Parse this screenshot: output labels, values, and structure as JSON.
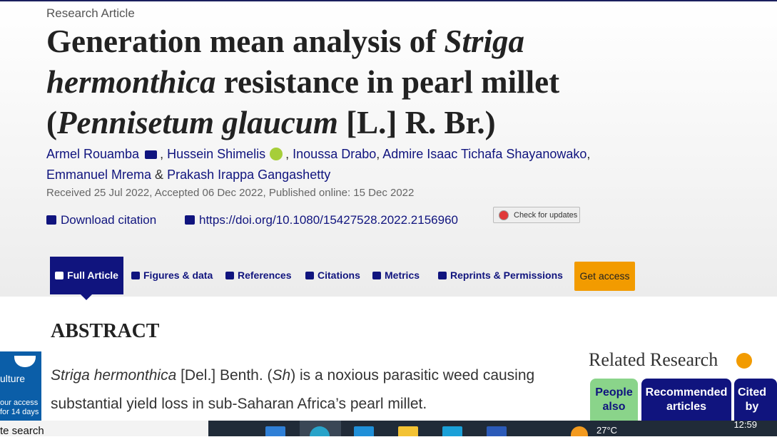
{
  "header": {
    "label": "Research Article",
    "title": [
      {
        "text": "Generation mean analysis of ",
        "italic": false
      },
      {
        "text": "Striga hermonthica",
        "italic": true
      },
      {
        "text": " resistance in pearl millet (",
        "italic": false
      },
      {
        "text": "Pennisetum glaucum",
        "italic": true
      },
      {
        "text": " [L.] R. Br.)",
        "italic": false
      }
    ],
    "authors": [
      {
        "name": "Armel Rouamba",
        "sep": ", "
      },
      {
        "name": "Hussein Shimelis",
        "sep": ", "
      },
      {
        "name": "Inoussa Drabo",
        "sep": ", "
      },
      {
        "name": "Admire Isaac Tichafa Shayanowako",
        "sep": ", "
      },
      {
        "name": "Emmanuel Mrema",
        "sep": " & "
      },
      {
        "name": "Prakash Irappa Gangashetty"
      }
    ],
    "dates": "Received 25 Jul 2022, Accepted 06 Dec 2022, Published online: 15 Dec 2022",
    "download_citation": "Download citation",
    "doi": "https://doi.org/10.1080/15427528.2022.2156960",
    "check_updates": "Check for updates"
  },
  "tabs": [
    "Full Article",
    "Figures & data",
    "References",
    "Citations",
    "Metrics",
    "Reprints & Permissions"
  ],
  "get_access": "Get access",
  "abstract": {
    "heading": "ABSTRACT",
    "text": [
      {
        "text": "Striga hermonthica",
        "italic": true
      },
      {
        "text": " [Del.] Benth. (",
        "italic": false
      },
      {
        "text": "Sh",
        "italic": true
      },
      {
        "text": ") is a noxious parasitic weed causing substantial yield loss in sub-Saharan Africa’s pearl millet.",
        "italic": false
      }
    ]
  },
  "ad": [
    "ulture",
    "our access",
    "for 14 days"
  ],
  "related": {
    "heading": "Related Research",
    "tabs": [
      "People also",
      "Recommended articles",
      "Cited by"
    ]
  },
  "taskbar": {
    "search": "te search",
    "temperature": "27°C",
    "time": "12:59"
  }
}
